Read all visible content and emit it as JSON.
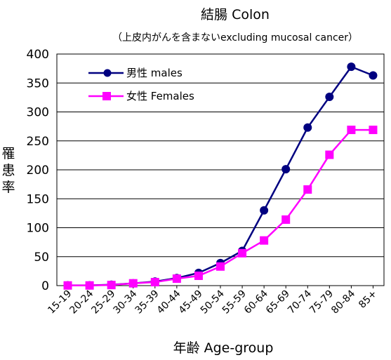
{
  "chart_data": {
    "type": "line",
    "title": "結腸 Colon",
    "subtitle": "（上皮内がんを含まないexcluding mucosal cancer）",
    "xlabel": "年齢 Age-group",
    "ylabel": "罹患率",
    "ylim": [
      0,
      400
    ],
    "yticks": [
      0,
      50,
      100,
      150,
      200,
      250,
      300,
      350,
      400
    ],
    "grid": true,
    "legend_position": "top-left",
    "categories": [
      "15-19",
      "20-24",
      "25-29",
      "30-34",
      "35-39",
      "40-44",
      "45-49",
      "50-54",
      "55-59",
      "60-64",
      "65-69",
      "70-74",
      "75-79",
      "80-84",
      "85+"
    ],
    "series": [
      {
        "name": "男性 males",
        "color": "#000080",
        "marker": "circle",
        "values": [
          0.5,
          0.5,
          1.5,
          4,
          7,
          13,
          22,
          39,
          60,
          130,
          201,
          273,
          326,
          378,
          363
        ]
      },
      {
        "name": "女性 Females",
        "color": "#ff00ff",
        "marker": "square",
        "values": [
          0.3,
          0.3,
          1,
          4,
          6,
          12,
          17,
          33,
          56,
          78,
          114,
          166,
          226,
          269,
          269
        ]
      }
    ]
  }
}
